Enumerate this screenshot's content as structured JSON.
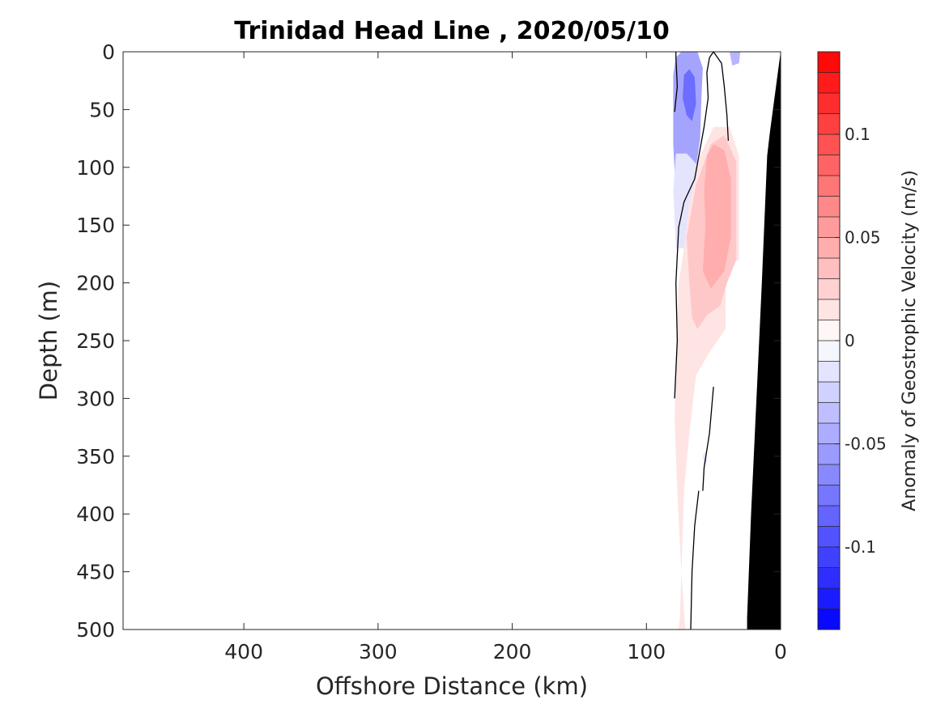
{
  "chart_data": {
    "type": "heatmap",
    "title": "Trinidad Head Line , 2020/05/10",
    "xlabel": "Offshore Distance (km)",
    "ylabel": "Depth (m)",
    "xlim": [
      490,
      0
    ],
    "ylim": [
      0,
      500
    ],
    "x_ticks": [
      400,
      300,
      200,
      100,
      0
    ],
    "y_ticks": [
      0,
      50,
      100,
      150,
      200,
      250,
      300,
      350,
      400,
      450,
      500
    ],
    "grid": false,
    "colorbar": {
      "label": "Anomaly of Geostrophic Velocity (m/s)",
      "range": [
        -0.14,
        0.14
      ],
      "step": 0.01,
      "ticks": [
        0.1,
        0.05,
        0,
        -0.05,
        -0.1
      ],
      "tick_labels": [
        "0.1",
        "0.05",
        "0",
        "-0.05",
        "-0.1"
      ],
      "min_color": "#0000ff",
      "mid_color": "#ffffff",
      "max_color": "#ff0000"
    },
    "regions": [
      {
        "value": -0.05,
        "points": [
          [
            78,
            5
          ],
          [
            74,
            0
          ],
          [
            62,
            0
          ],
          [
            58,
            14
          ],
          [
            59,
            40
          ],
          [
            60,
            75
          ],
          [
            64,
            108
          ],
          [
            71,
            130
          ],
          [
            78,
            125
          ],
          [
            80,
            80
          ],
          [
            80,
            20
          ]
        ]
      },
      {
        "value": -0.08,
        "points": [
          [
            72,
            20
          ],
          [
            68,
            15
          ],
          [
            64,
            22
          ],
          [
            63,
            45
          ],
          [
            66,
            60
          ],
          [
            70,
            55
          ],
          [
            73,
            40
          ]
        ]
      },
      {
        "value": -0.04,
        "points": [
          [
            38,
            0
          ],
          [
            30,
            0
          ],
          [
            31,
            10
          ],
          [
            36,
            12
          ]
        ]
      },
      {
        "value": -0.015,
        "points": [
          [
            64,
            120
          ],
          [
            62,
            98
          ],
          [
            70,
            88
          ],
          [
            78,
            88
          ],
          [
            80,
            120
          ],
          [
            78,
            170
          ],
          [
            70,
            170
          ]
        ]
      },
      {
        "value": 0.015,
        "points": [
          [
            72,
            170
          ],
          [
            68,
            130
          ],
          [
            60,
            90
          ],
          [
            50,
            65
          ],
          [
            38,
            65
          ],
          [
            31,
            90
          ],
          [
            31,
            180
          ],
          [
            41,
            185
          ],
          [
            41,
            240
          ],
          [
            53,
            260
          ],
          [
            63,
            280
          ],
          [
            68,
            330
          ],
          [
            72,
            380
          ],
          [
            75,
            490
          ],
          [
            76,
            500
          ],
          [
            71,
            500
          ],
          [
            74,
            450
          ],
          [
            77,
            380
          ],
          [
            79,
            320
          ],
          [
            78,
            260
          ],
          [
            76,
            200
          ]
        ]
      },
      {
        "value": 0.03,
        "points": [
          [
            70,
            160
          ],
          [
            63,
            115
          ],
          [
            52,
            80
          ],
          [
            42,
            72
          ],
          [
            33,
            95
          ],
          [
            33,
            180
          ],
          [
            40,
            200
          ],
          [
            45,
            220
          ],
          [
            55,
            228
          ],
          [
            62,
            240
          ],
          [
            66,
            230
          ],
          [
            68,
            200
          ]
        ]
      },
      {
        "value": 0.045,
        "points": [
          [
            55,
            90
          ],
          [
            50,
            80
          ],
          [
            42,
            85
          ],
          [
            37,
            110
          ],
          [
            37,
            160
          ],
          [
            42,
            190
          ],
          [
            52,
            205
          ],
          [
            58,
            190
          ],
          [
            56,
            150
          ],
          [
            57,
            120
          ]
        ]
      },
      {
        "value": -0.015,
        "points": [
          [
            58,
            350
          ],
          [
            56,
            345
          ],
          [
            55,
            355
          ],
          [
            57,
            358
          ]
        ]
      }
    ],
    "zero_contours": [
      [
        [
          79,
          52
        ],
        [
          77,
          30
        ],
        [
          78,
          5
        ],
        [
          78,
          0
        ]
      ],
      [
        [
          39,
          77
        ],
        [
          40,
          55
        ],
        [
          42,
          30
        ],
        [
          44,
          10
        ],
        [
          50,
          0
        ],
        [
          53,
          5
        ],
        [
          55,
          18
        ],
        [
          54,
          40
        ],
        [
          57,
          65
        ],
        [
          64,
          110
        ],
        [
          72,
          130
        ],
        [
          76,
          152
        ],
        [
          78,
          200
        ],
        [
          77,
          250
        ],
        [
          79,
          300
        ]
      ],
      [
        [
          50,
          290
        ],
        [
          53,
          330
        ],
        [
          57,
          360
        ],
        [
          58,
          380
        ]
      ],
      [
        [
          61,
          380
        ],
        [
          64,
          410
        ],
        [
          66,
          450
        ],
        [
          67,
          500
        ]
      ]
    ],
    "bottom_topography": {
      "color": "#000000",
      "points": [
        [
          0,
          0
        ],
        [
          8,
          70
        ],
        [
          10,
          90
        ],
        [
          14,
          200
        ],
        [
          18,
          300
        ],
        [
          22,
          400
        ],
        [
          25,
          490
        ],
        [
          25,
          500
        ],
        [
          0,
          500
        ]
      ]
    }
  }
}
